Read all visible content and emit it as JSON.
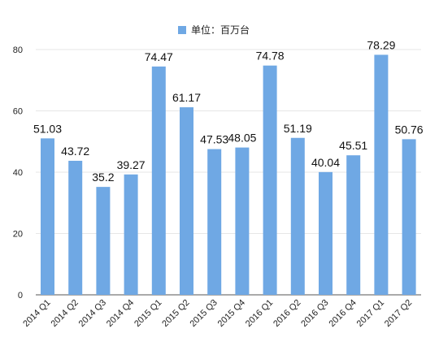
{
  "chart_data": {
    "type": "bar",
    "legend": "top-center",
    "grid": true,
    "ylim": [
      0,
      80
    ],
    "yticks": [
      0,
      20,
      40,
      60,
      80
    ],
    "colors": {
      "bar": "#6fa8e4",
      "grid": "#e6e6e6",
      "axis": "#555555"
    },
    "series": [
      {
        "name": "单位：百万台",
        "values": [
          51.03,
          43.72,
          35.2,
          39.27,
          74.47,
          61.17,
          47.53,
          48.05,
          74.78,
          51.19,
          40.04,
          45.51,
          78.29,
          50.76
        ]
      }
    ],
    "categories": [
      "2014 Q1",
      "2014 Q2",
      "2014 Q3",
      "2014 Q4",
      "2015 Q1",
      "2015 Q2",
      "2015 Q3",
      "2015 Q4",
      "2016 Q1",
      "2016 Q2",
      "2016 Q3",
      "2016 Q4",
      "2017 Q1",
      "2017 Q2"
    ],
    "data_labels": [
      "51.03",
      "43.72",
      "35.2",
      "39.27",
      "74.47",
      "61.17",
      "47.53",
      "48.05",
      "74.78",
      "51.19",
      "40.04",
      "45.51",
      "78.29",
      "50.76"
    ]
  }
}
